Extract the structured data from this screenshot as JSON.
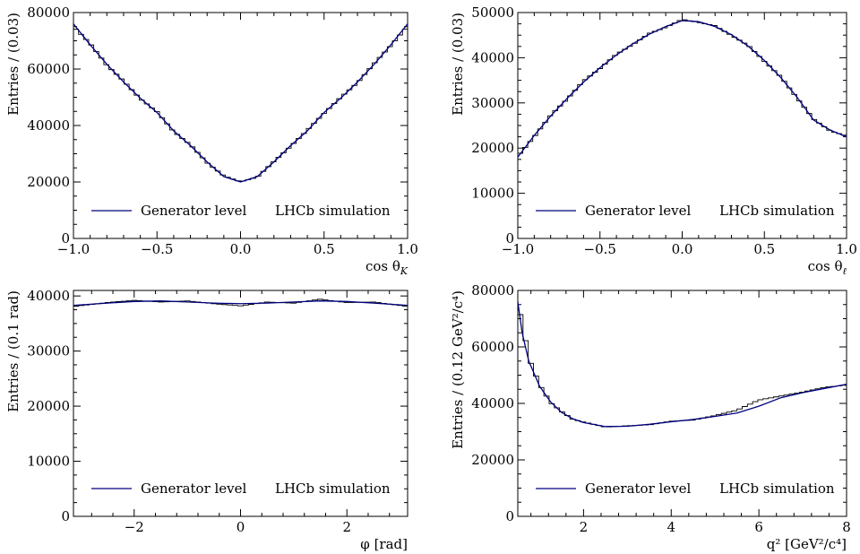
{
  "colors": {
    "histogram": "#000000",
    "curve": "#00007f",
    "axes": "#000000"
  },
  "chart_data": [
    {
      "type": "line",
      "id": "costhetaK",
      "xlabel": "cos θ_K",
      "ylabel": "Entries / (0.03)",
      "xlim": [
        -1.0,
        1.0
      ],
      "ylim": [
        0,
        80000
      ],
      "xticks": [
        -1.0,
        -0.5,
        0.0,
        0.5,
        1.0
      ],
      "xtick_labels": [
        "−1.0",
        "−0.5",
        "0.0",
        "0.5",
        "1.0"
      ],
      "yticks": [
        0,
        20000,
        40000,
        60000,
        80000
      ],
      "ytick_labels": [
        "0",
        "20000",
        "40000",
        "60000",
        "80000"
      ],
      "legend_entry": "Generator level",
      "annotation": "LHCb simulation",
      "legend_position": "bottom",
      "bins": {
        "low": -1.0,
        "high": 1.0,
        "n": 66
      },
      "series": [
        {
          "name": "Generator level",
          "role": "curve",
          "x": [
            -1.0,
            -0.9,
            -0.8,
            -0.7,
            -0.6,
            -0.5,
            -0.4,
            -0.3,
            -0.2,
            -0.1,
            0.0,
            0.1,
            0.2,
            0.3,
            0.4,
            0.5,
            0.6,
            0.7,
            0.8,
            0.9,
            1.0
          ],
          "y": [
            76000,
            68600,
            61700,
            55400,
            49700,
            44600,
            38100,
            32900,
            27100,
            21900,
            20000,
            21900,
            27100,
            32900,
            38100,
            44600,
            49700,
            55400,
            61700,
            68600,
            76000
          ]
        },
        {
          "name": "",
          "role": "histogram",
          "x": [
            -1.0,
            -0.9,
            -0.8,
            -0.7,
            -0.6,
            -0.5,
            -0.4,
            -0.3,
            -0.2,
            -0.1,
            0.0,
            0.1,
            0.2,
            0.3,
            0.4,
            0.5,
            0.6,
            0.7,
            0.8,
            0.9,
            1.0
          ],
          "y": [
            75000,
            69000,
            61300,
            55800,
            49400,
            44900,
            37800,
            33200,
            26800,
            22200,
            20100,
            21700,
            27300,
            32600,
            38400,
            44300,
            50000,
            55100,
            62000,
            68300,
            75200
          ]
        }
      ]
    },
    {
      "type": "line",
      "id": "costhetal",
      "xlabel": "cos θ_ℓ",
      "ylabel": "Entries / (0.03)",
      "xlim": [
        -1.0,
        1.0
      ],
      "ylim": [
        0,
        50000
      ],
      "xticks": [
        -1.0,
        -0.5,
        0.0,
        0.5,
        1.0
      ],
      "xtick_labels": [
        "−1.0",
        "−0.5",
        "0.0",
        "0.5",
        "1.0"
      ],
      "yticks": [
        0,
        10000,
        20000,
        30000,
        40000,
        50000
      ],
      "ytick_labels": [
        "0",
        "10000",
        "20000",
        "30000",
        "40000",
        "50000"
      ],
      "legend_entry": "Generator level",
      "annotation": "LHCb simulation",
      "legend_position": "bottom",
      "bins": {
        "low": -1.0,
        "high": 1.0,
        "n": 66
      },
      "series": [
        {
          "name": "Generator level",
          "role": "curve",
          "x": [
            -1.0,
            -0.9,
            -0.8,
            -0.7,
            -0.6,
            -0.5,
            -0.4,
            -0.3,
            -0.2,
            -0.1,
            0.0,
            0.1,
            0.2,
            0.3,
            0.4,
            0.5,
            0.6,
            0.7,
            0.8,
            0.9,
            1.0
          ],
          "y": [
            18000,
            22800,
            27100,
            31000,
            34600,
            37800,
            40600,
            43100,
            45200,
            46900,
            48200,
            48000,
            46900,
            45100,
            42600,
            39400,
            35600,
            31200,
            26200,
            24000,
            22500
          ]
        },
        {
          "name": "",
          "role": "histogram",
          "x": [
            -1.0,
            -0.9,
            -0.8,
            -0.7,
            -0.6,
            -0.5,
            -0.4,
            -0.3,
            -0.2,
            -0.1,
            0.0,
            0.1,
            0.2,
            0.3,
            0.4,
            0.5,
            0.6,
            0.7,
            0.8,
            0.9,
            1.0
          ],
          "y": [
            18200,
            22500,
            27300,
            30800,
            34900,
            37600,
            40800,
            42900,
            45400,
            46700,
            48500,
            47800,
            47100,
            44900,
            42800,
            39200,
            35800,
            31000,
            26400,
            23800,
            22700
          ]
        }
      ]
    },
    {
      "type": "line",
      "id": "phi",
      "xlabel": "φ [rad]",
      "ylabel": "Entries / (0.1 rad)",
      "xlim": [
        -3.1416,
        3.1416
      ],
      "ylim": [
        0,
        41000
      ],
      "xticks": [
        -2,
        0,
        2
      ],
      "xtick_labels": [
        "−2",
        "0",
        "2"
      ],
      "yticks": [
        0,
        10000,
        20000,
        30000,
        40000
      ],
      "ytick_labels": [
        "0",
        "10000",
        "20000",
        "30000",
        "40000"
      ],
      "legend_entry": "Generator level",
      "annotation": "LHCb simulation",
      "legend_position": "bottom",
      "bins": {
        "low": -3.1416,
        "high": 3.1416,
        "n": 63
      },
      "series": [
        {
          "name": "Generator level",
          "role": "curve",
          "x": [
            -3.14,
            -2.5,
            -2.0,
            -1.5,
            -1.0,
            -0.5,
            0.0,
            0.5,
            1.0,
            1.5,
            2.0,
            2.5,
            3.14
          ],
          "y": [
            38300,
            38700,
            39000,
            39100,
            38900,
            38700,
            38600,
            38700,
            38900,
            39100,
            39000,
            38700,
            38300
          ]
        },
        {
          "name": "",
          "role": "histogram",
          "x": [
            -3.14,
            -2.5,
            -2.0,
            -1.5,
            -1.0,
            -0.5,
            0.0,
            0.5,
            1.0,
            1.5,
            2.0,
            2.5,
            3.14
          ],
          "y": [
            38100,
            38800,
            39200,
            38900,
            39100,
            38600,
            38200,
            38900,
            38700,
            39400,
            38800,
            38900,
            38100
          ]
        }
      ]
    },
    {
      "type": "line",
      "id": "q2",
      "xlabel": "q² [GeV²/c⁴]",
      "ylabel": "Entries / (0.12 GeV²/c⁴)",
      "xlim": [
        0.5,
        8.0
      ],
      "ylim": [
        0,
        80000
      ],
      "xticks": [
        2,
        4,
        6,
        8
      ],
      "xtick_labels": [
        "2",
        "4",
        "6",
        "8"
      ],
      "yticks": [
        0,
        20000,
        40000,
        60000,
        80000
      ],
      "ytick_labels": [
        "0",
        "20000",
        "40000",
        "60000",
        "80000"
      ],
      "legend_entry": "Generator level",
      "annotation": "LHCb simulation",
      "legend_position": "bottom",
      "bins": {
        "low": 0.5,
        "high": 8.0,
        "n": 63
      },
      "series": [
        {
          "name": "Generator level",
          "role": "curve",
          "x": [
            0.5,
            0.6,
            0.75,
            1.0,
            1.25,
            1.5,
            1.75,
            2.0,
            2.5,
            3.0,
            3.5,
            4.0,
            4.5,
            5.0,
            5.5,
            6.0,
            6.5,
            7.0,
            7.5,
            8.0
          ],
          "y": [
            76000,
            65000,
            55000,
            46000,
            40500,
            36800,
            34600,
            33200,
            31800,
            31900,
            32600,
            33500,
            34300,
            35400,
            36600,
            39000,
            42000,
            43800,
            45300,
            46800
          ]
        },
        {
          "name": "",
          "role": "histogram",
          "x": [
            0.5,
            0.6,
            0.75,
            1.0,
            1.25,
            1.5,
            1.75,
            2.0,
            2.5,
            3.0,
            3.5,
            4.0,
            4.5,
            5.0,
            5.5,
            6.0,
            6.5,
            7.0,
            7.5,
            8.0
          ],
          "y": [
            75000,
            69000,
            56000,
            46500,
            40200,
            37100,
            34400,
            33400,
            31600,
            32100,
            32400,
            33700,
            34100,
            35700,
            37600,
            41200,
            42600,
            44000,
            45700,
            46500
          ]
        }
      ]
    }
  ]
}
